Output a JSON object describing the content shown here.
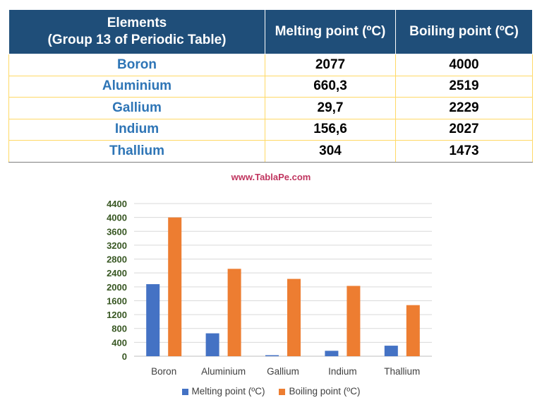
{
  "table": {
    "headers": [
      "Elements\n(Group 13 of Periodic Table)",
      "Melting point (ºC)",
      "Boiling point (ºC)"
    ],
    "rows": [
      [
        "Boron",
        "2077",
        "4000"
      ],
      [
        "Aluminium",
        "660,3",
        "2519"
      ],
      [
        "Gallium",
        "29,7",
        "2229"
      ],
      [
        "Indium",
        "156,6",
        "2027"
      ],
      [
        "Thallium",
        "304",
        "1473"
      ]
    ]
  },
  "site": "www.TablaPe.com",
  "chart_data": {
    "type": "bar",
    "categories": [
      "Boron",
      "Aluminium",
      "Gallium",
      "Indium",
      "Thallium"
    ],
    "series": [
      {
        "name": "Melting point (ºC)",
        "values": [
          2077,
          660.3,
          29.7,
          156.6,
          304
        ],
        "color": "#4472c4"
      },
      {
        "name": "Boiling point (ºC)",
        "values": [
          4000,
          2519,
          2229,
          2027,
          1473
        ],
        "color": "#ed7d31"
      }
    ],
    "y_ticks": [
      "0",
      "400",
      "800",
      "1200",
      "1600",
      "2000",
      "2400",
      "2800",
      "3200",
      "3600",
      "4000",
      "4400"
    ],
    "ylim": [
      0,
      4400
    ],
    "grid": true,
    "legend": "bottom"
  },
  "colors": {
    "header_bg": "#1f4e79",
    "element_text": "#2e75b6",
    "cell_border": "#ffd966"
  }
}
